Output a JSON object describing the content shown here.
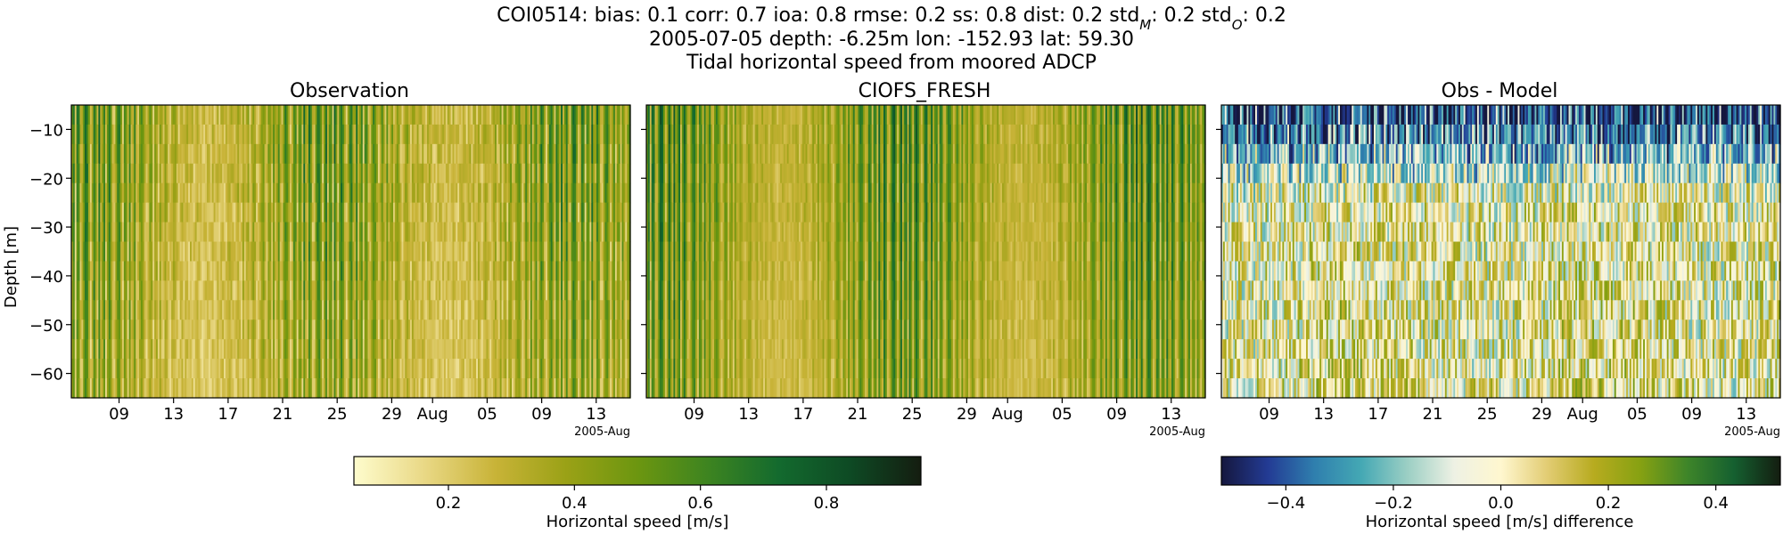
{
  "title": {
    "station": "COI0514",
    "stats": [
      {
        "label": "bias",
        "value": "0.1"
      },
      {
        "label": "corr",
        "value": "0.7"
      },
      {
        "label": "ioa",
        "value": "0.8"
      },
      {
        "label": "rmse",
        "value": "0.2"
      },
      {
        "label": "ss",
        "value": "0.8"
      },
      {
        "label": "dist",
        "value": "0.2"
      },
      {
        "label": "std",
        "sub": "M",
        "value": "0.2"
      },
      {
        "label": "std",
        "sub": "O",
        "value": "0.2"
      }
    ],
    "line2": "2005-07-05 depth: -6.25m lon: -152.93 lat: 59.30",
    "line3": "Tidal horizontal speed from moored ADCP"
  },
  "chart_data": [
    {
      "type": "heatmap",
      "title": "Observation",
      "ylabel": "Depth [m]",
      "x_tick_labels": [
        "09",
        "13",
        "17",
        "21",
        "25",
        "29",
        "Aug",
        "05",
        "09",
        "13"
      ],
      "x_offset_label": "2005-Aug",
      "xlim": [
        "2005-07-05",
        "2005-08-15"
      ],
      "ylim": [
        -65,
        -5
      ],
      "y_ticks": [
        -10,
        -20,
        -30,
        -40,
        -50,
        -60
      ],
      "colormap": "speed",
      "clim": [
        0.05,
        0.95
      ]
    },
    {
      "type": "heatmap",
      "title": "CIOFS_FRESH",
      "x_tick_labels": [
        "09",
        "13",
        "17",
        "21",
        "25",
        "29",
        "Aug",
        "05",
        "09",
        "13"
      ],
      "x_offset_label": "2005-Aug",
      "xlim": [
        "2005-07-05",
        "2005-08-15"
      ],
      "ylim": [
        -65,
        -5
      ],
      "y_ticks": [
        -10,
        -20,
        -30,
        -40,
        -50,
        -60
      ],
      "colormap": "speed",
      "clim": [
        0.05,
        0.95
      ]
    },
    {
      "type": "heatmap",
      "title": "Obs - Model",
      "x_tick_labels": [
        "09",
        "13",
        "17",
        "21",
        "25",
        "29",
        "Aug",
        "05",
        "09",
        "13"
      ],
      "x_offset_label": "2005-Aug",
      "xlim": [
        "2005-07-05",
        "2005-08-15"
      ],
      "ylim": [
        -65,
        -5
      ],
      "y_ticks": [
        -10,
        -20,
        -30,
        -40,
        -50,
        -60
      ],
      "colormap": "diverging",
      "clim": [
        -0.52,
        0.52
      ]
    }
  ],
  "colorbars": [
    {
      "label": "Horizontal speed [m/s]",
      "ticks": [
        0.2,
        0.4,
        0.6,
        0.8
      ],
      "tick_labels": [
        "0.2",
        "0.4",
        "0.6",
        "0.8"
      ],
      "range": [
        0.05,
        0.95
      ]
    },
    {
      "label": "Horizontal speed [m/s] difference",
      "ticks": [
        -0.4,
        -0.2,
        0.0,
        0.2,
        0.4
      ],
      "tick_labels": [
        "−0.4",
        "−0.2",
        "0.0",
        "0.2",
        "0.4"
      ],
      "range": [
        -0.52,
        0.52
      ]
    }
  ],
  "colors": {
    "speed": [
      "#fefccd",
      "#e9d885",
      "#c8b337",
      "#9aa116",
      "#6c9610",
      "#3d8420",
      "#136a2e",
      "#0e4a24",
      "#141d10"
    ],
    "diverging": [
      "#15173e",
      "#233b94",
      "#2f7fae",
      "#44a8b4",
      "#9ccfc4",
      "#eef1e4",
      "#fff7cf",
      "#e2cc73",
      "#b7ab1f",
      "#86a112",
      "#3e8529",
      "#156030",
      "#141d10"
    ]
  }
}
